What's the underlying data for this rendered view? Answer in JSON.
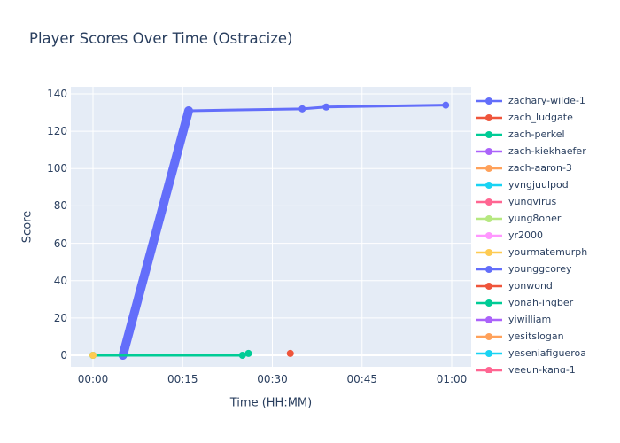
{
  "chart_data": {
    "type": "line",
    "title": "Player Scores Over Time (Ostracize)",
    "xlabel": "Time (HH:MM)",
    "ylabel": "Score",
    "x_tick_labels": [
      "00:00",
      "00:15",
      "00:30",
      "00:45",
      "01:00"
    ],
    "x_tick_minutes": [
      0,
      15,
      30,
      45,
      60
    ],
    "y_ticks": [
      0,
      20,
      40,
      60,
      80,
      100,
      120,
      140
    ],
    "xlim_minutes": [
      -3.7,
      63.3
    ],
    "ylim": [
      -6.2,
      143.8
    ],
    "grid": true,
    "plot_bg_color": "#E5ECF6",
    "grid_color": "#FFFFFF",
    "text_color": "#2a3f5f",
    "legend_position": "right",
    "mode": "lines+markers",
    "series": [
      {
        "name": "zachary-wilde-1",
        "color": "#636EFA",
        "points_min_score": [
          [
            5,
            0
          ],
          [
            16,
            131
          ],
          [
            35,
            132
          ],
          [
            39,
            133
          ],
          [
            59,
            134
          ]
        ],
        "thick_rise_segment": true
      },
      {
        "name": "zach_ludgate",
        "color": "#EF553B",
        "points_min_score": [
          [
            33,
            1
          ]
        ]
      },
      {
        "name": "zach-perkel",
        "color": "#00CC96",
        "points_min_score": [
          [
            0,
            0
          ],
          [
            25,
            0
          ],
          [
            26,
            1
          ]
        ]
      },
      {
        "name": "zach-kiekhaefer",
        "color": "#AB63FA",
        "points_min_score": []
      },
      {
        "name": "zach-aaron-3",
        "color": "#FFA15A",
        "points_min_score": []
      },
      {
        "name": "yvngjuulpod",
        "color": "#19D3F3",
        "points_min_score": []
      },
      {
        "name": "yungvirus",
        "color": "#FF6692",
        "points_min_score": []
      },
      {
        "name": "yung8oner",
        "color": "#B6E880",
        "points_min_score": []
      },
      {
        "name": "yr2000",
        "color": "#FF97FF",
        "points_min_score": []
      },
      {
        "name": "yourmatemurph",
        "color": "#FECB52",
        "points_min_score": [
          [
            0,
            0
          ]
        ]
      },
      {
        "name": "younggcorey",
        "color": "#636EFA",
        "points_min_score": []
      },
      {
        "name": "yonwond",
        "color": "#EF553B",
        "points_min_score": []
      },
      {
        "name": "yonah-ingber",
        "color": "#00CC96",
        "points_min_score": []
      },
      {
        "name": "yiwilliam",
        "color": "#AB63FA",
        "points_min_score": []
      },
      {
        "name": "yesitslogan",
        "color": "#FFA15A",
        "points_min_score": []
      },
      {
        "name": "yeseniafigueroa",
        "color": "#19D3F3",
        "points_min_score": []
      },
      {
        "name": "yeeun-kang-1",
        "color": "#FF6692",
        "points_min_score": []
      }
    ]
  }
}
